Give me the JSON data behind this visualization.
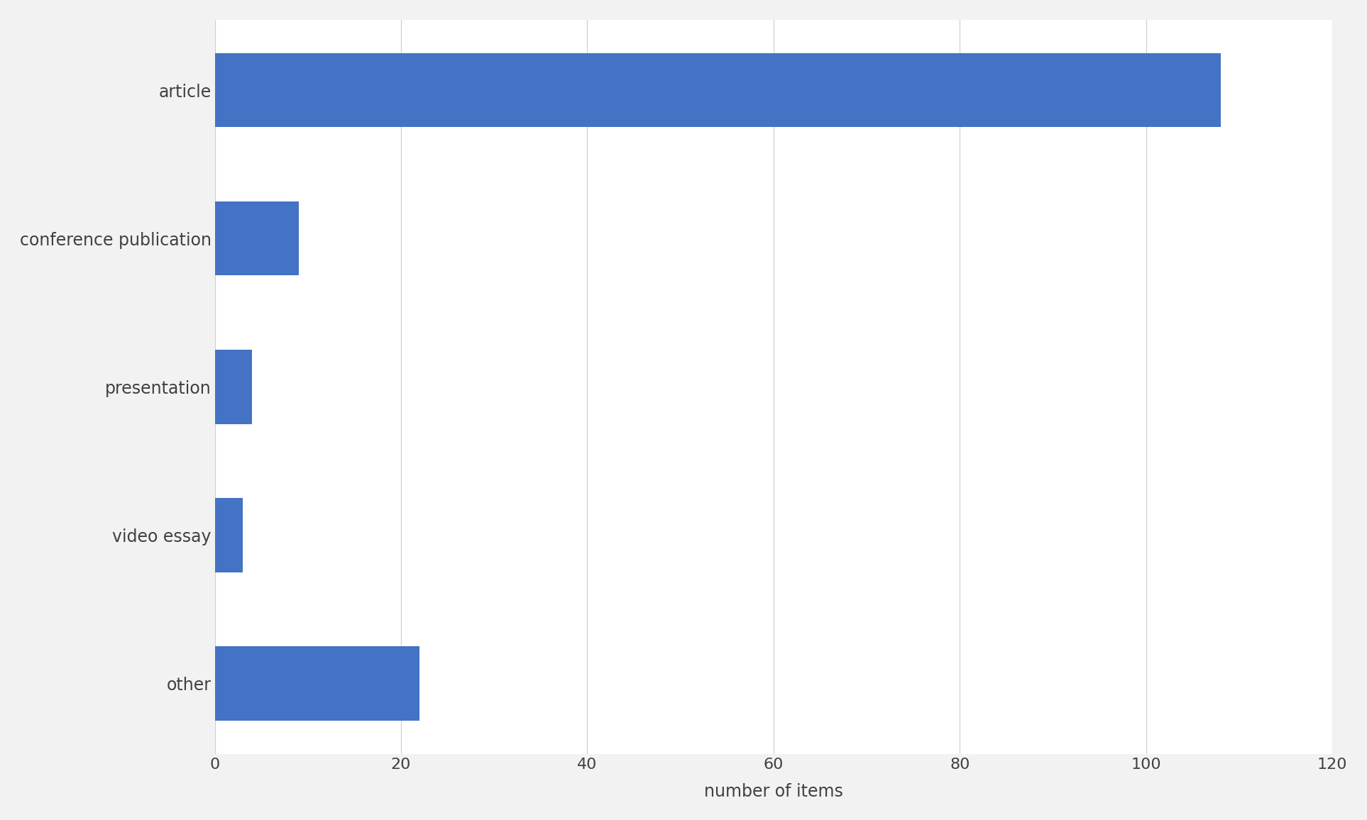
{
  "categories": [
    "article",
    "conference publication",
    "presentation",
    "video essay",
    "other"
  ],
  "values": [
    108,
    9,
    4,
    3,
    22
  ],
  "bar_color": "#4472C4",
  "xlabel": "number of items",
  "xlim": [
    0,
    120
  ],
  "xticks": [
    0,
    20,
    40,
    60,
    80,
    100,
    120
  ],
  "background_color": "#f2f2f2",
  "plot_bg_color": "#ffffff",
  "label_fontsize": 17,
  "tick_fontsize": 16,
  "label_color": "#404040",
  "bar_height": 0.5,
  "grid_color": "#d0d0d0"
}
